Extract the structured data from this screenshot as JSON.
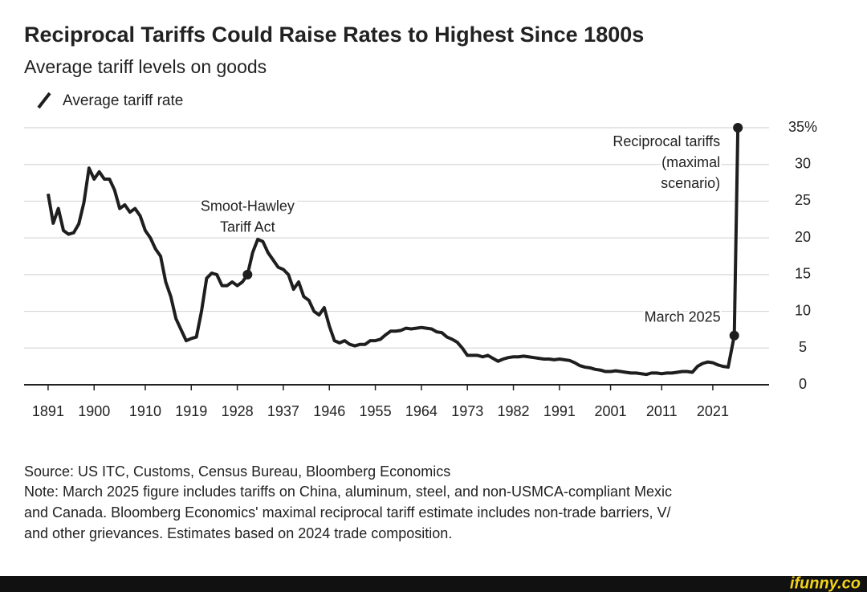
{
  "chart_data": {
    "type": "line",
    "title": "Reciprocal Tariffs Could Raise Rates to Highest Since 1800s",
    "subtitle": "Average tariff levels on goods",
    "x": [
      1891,
      1892,
      1893,
      1894,
      1895,
      1896,
      1897,
      1898,
      1899,
      1900,
      1901,
      1902,
      1903,
      1904,
      1905,
      1906,
      1907,
      1908,
      1909,
      1910,
      1911,
      1912,
      1913,
      1914,
      1915,
      1916,
      1917,
      1918,
      1919,
      1920,
      1921,
      1922,
      1923,
      1924,
      1925,
      1926,
      1927,
      1928,
      1929,
      1930,
      1931,
      1932,
      1933,
      1934,
      1935,
      1936,
      1937,
      1938,
      1939,
      1940,
      1941,
      1942,
      1943,
      1944,
      1945,
      1946,
      1947,
      1948,
      1949,
      1950,
      1951,
      1952,
      1953,
      1954,
      1955,
      1956,
      1957,
      1958,
      1959,
      1960,
      1961,
      1962,
      1963,
      1964,
      1965,
      1966,
      1967,
      1968,
      1969,
      1970,
      1971,
      1972,
      1973,
      1974,
      1975,
      1976,
      1977,
      1978,
      1979,
      1980,
      1981,
      1982,
      1983,
      1984,
      1985,
      1986,
      1987,
      1988,
      1989,
      1990,
      1991,
      1992,
      1993,
      1994,
      1995,
      1996,
      1997,
      1998,
      1999,
      2000,
      2001,
      2002,
      2003,
      2004,
      2005,
      2006,
      2007,
      2008,
      2009,
      2010,
      2011,
      2012,
      2013,
      2014,
      2015,
      2016,
      2017,
      2018,
      2019,
      2020,
      2021,
      2022,
      2023,
      2024,
      2025.2,
      2025.9
    ],
    "series": [
      {
        "name": "Average tariff rate",
        "color": "#1e1e1e",
        "values": [
          26,
          22,
          24,
          21,
          20.5,
          20.7,
          21.9,
          24.8,
          29.5,
          28,
          29,
          28,
          28,
          26.5,
          24,
          24.5,
          23.5,
          24,
          23,
          21,
          20,
          18.5,
          17.5,
          14,
          12,
          9,
          7.5,
          6,
          6.3,
          6.5,
          10,
          14.5,
          15.2,
          15,
          13.5,
          13.5,
          14,
          13.5,
          14,
          15,
          18,
          19.8,
          19.5,
          18,
          17,
          16,
          15.7,
          15,
          13,
          14,
          12,
          11.5,
          10,
          9.5,
          10.5,
          8,
          6,
          5.7,
          6,
          5.5,
          5.3,
          5.5,
          5.5,
          6,
          6,
          6.2,
          6.8,
          7.3,
          7.3,
          7.4,
          7.7,
          7.6,
          7.7,
          7.8,
          7.7,
          7.6,
          7.2,
          7.1,
          6.5,
          6.2,
          5.8,
          5,
          4,
          4,
          4,
          3.8,
          4,
          3.6,
          3.2,
          3.5,
          3.7,
          3.8,
          3.8,
          3.9,
          3.8,
          3.7,
          3.6,
          3.5,
          3.5,
          3.4,
          3.5,
          3.4,
          3.3,
          3,
          2.6,
          2.4,
          2.3,
          2.1,
          2,
          1.8,
          1.8,
          1.9,
          1.8,
          1.7,
          1.6,
          1.6,
          1.5,
          1.4,
          1.6,
          1.6,
          1.5,
          1.6,
          1.6,
          1.7,
          1.8,
          1.8,
          1.7,
          2.5,
          2.9,
          3.1,
          3,
          2.7,
          2.5,
          2.4,
          6.7,
          35
        ]
      }
    ],
    "annotations": [
      {
        "x": 1930,
        "y": 15,
        "text": [
          "Smoot-Hawley",
          "Tariff Act"
        ]
      },
      {
        "x": 2025.9,
        "y": 35,
        "text": [
          "Reciprocal tariffs",
          "(maximal",
          "scenario)"
        ]
      },
      {
        "x": 2025.2,
        "y": 6.7,
        "text": [
          "March 2025"
        ]
      }
    ],
    "xlim": [
      1886.3,
      2032
    ],
    "xticks": [
      1891,
      1900,
      1910,
      1919,
      1928,
      1937,
      1946,
      1955,
      1964,
      1973,
      1982,
      1991,
      2001,
      2011,
      2021
    ],
    "ylim": [
      0,
      35
    ],
    "yticks": [
      0,
      5,
      10,
      15,
      20,
      25,
      30,
      {
        "value": 35,
        "label": "35%"
      }
    ],
    "grid": true,
    "source": "Source: US ITC, Customs, Census Bureau, Bloomberg Economics",
    "note": [
      "Note: March 2025 figure includes tariffs on China, aluminum, steel, and non-USMCA-compliant Mexic",
      "and Canada. Bloomberg Economics' maximal reciprocal tariff estimate includes non-trade barriers, V/",
      "and other grievances. Estimates based on 2024 trade composition."
    ],
    "watermark": "ifunny.co"
  }
}
